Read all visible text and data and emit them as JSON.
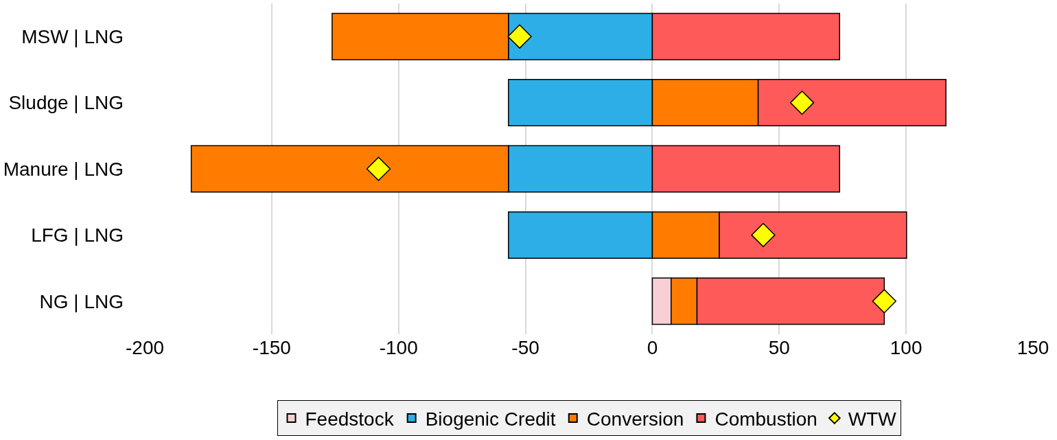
{
  "chart_data": {
    "type": "bar",
    "orientation": "horizontal",
    "stacked": true,
    "categories": [
      "MSW | LNG",
      "Sludge | LNG",
      "Manure | LNG",
      "LFG | LNG",
      "NG | LNG"
    ],
    "series": [
      {
        "name": "Feedstock",
        "color": "#f8cfd4",
        "values": [
          null,
          null,
          null,
          null,
          7.4
        ]
      },
      {
        "name": "Biogenic Credit",
        "color": "#2eaee6",
        "values": [
          -56.7,
          -56.7,
          -56.7,
          -56.7,
          null
        ]
      },
      {
        "name": "Conversion",
        "color": "#ff7c00",
        "values": [
          -69.5,
          41.7,
          -125.0,
          26.4,
          10.2
        ]
      },
      {
        "name": "Combustion",
        "color": "#ff5a5a",
        "values": [
          73.8,
          74.0,
          73.8,
          73.8,
          73.8
        ]
      },
      {
        "name": "WTW",
        "type": "scatter",
        "marker": "diamond",
        "color": "#ffff00",
        "values": [
          -52.3,
          59.0,
          -107.9,
          43.7,
          91.4
        ]
      }
    ],
    "xlim": [
      -200,
      150
    ],
    "xticks": [
      -200,
      -150,
      -100,
      -50,
      0,
      50,
      100,
      150
    ],
    "grid": "x",
    "legend": "bottom"
  }
}
